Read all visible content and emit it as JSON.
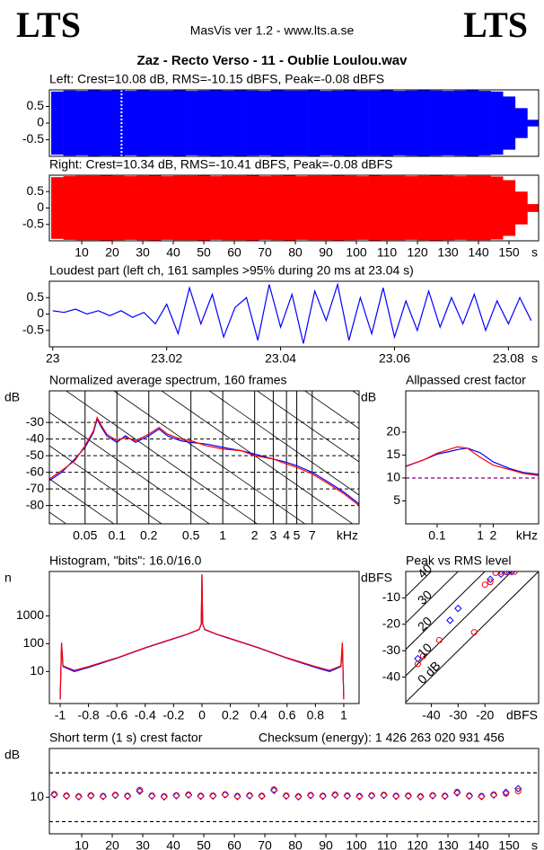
{
  "header": {
    "logo_left": "LTS",
    "app": "MasVis ver 1.2 - www.lts.a.se",
    "logo_right": "LTS",
    "file": "Zaz - Recto Verso - 11 - Oublie Loulou.wav"
  },
  "chart_data": [
    {
      "type": "waveform",
      "title": "Left: Crest=10.08 dB, RMS=-10.15 dBFS, Peak=-0.08 dBFS",
      "color": "#0000ff",
      "x": [
        0,
        4,
        8,
        12,
        16,
        20,
        24,
        28,
        32,
        36,
        40,
        44,
        48,
        52,
        56,
        60,
        64,
        68,
        72,
        76,
        80,
        84,
        88,
        92,
        96,
        100,
        104,
        108,
        112,
        116,
        120,
        124,
        128,
        132,
        136,
        140,
        144,
        148,
        152,
        156
      ],
      "values": [
        0.95,
        0.98,
        0.97,
        0.99,
        0.98,
        0.99,
        0.97,
        0.99,
        0.98,
        0.98,
        0.99,
        0.97,
        0.98,
        0.99,
        0.98,
        0.99,
        0.98,
        0.97,
        0.99,
        0.98,
        0.98,
        0.99,
        0.97,
        0.98,
        0.99,
        0.98,
        0.98,
        0.99,
        0.97,
        0.98,
        0.99,
        0.98,
        0.97,
        0.98,
        0.99,
        0.97,
        0.95,
        0.8,
        0.45,
        0.1
      ],
      "xlim": [
        -0.6,
        159.7
      ],
      "ylim": [
        -1,
        1
      ],
      "yticks": [
        0.5,
        0,
        -0.5
      ],
      "marker_x": 23.04
    },
    {
      "type": "waveform",
      "title": "Right: Crest=10.34 dB, RMS=-10.41 dBFS, Peak=-0.08 dBFS",
      "color": "#ff0000",
      "x": [
        0,
        4,
        8,
        12,
        16,
        20,
        24,
        28,
        32,
        36,
        40,
        44,
        48,
        52,
        56,
        60,
        64,
        68,
        72,
        76,
        80,
        84,
        88,
        92,
        96,
        100,
        104,
        108,
        112,
        116,
        120,
        124,
        128,
        132,
        136,
        140,
        144,
        148,
        152,
        156
      ],
      "values": [
        0.94,
        0.97,
        0.98,
        0.98,
        0.99,
        0.98,
        0.97,
        0.98,
        0.99,
        0.97,
        0.98,
        0.98,
        0.99,
        0.97,
        0.98,
        0.98,
        0.99,
        0.97,
        0.98,
        0.99,
        0.97,
        0.98,
        0.98,
        0.99,
        0.98,
        0.97,
        0.99,
        0.98,
        0.98,
        0.97,
        0.98,
        0.99,
        0.98,
        0.97,
        0.98,
        0.98,
        0.96,
        0.85,
        0.5,
        0.12
      ],
      "xlim": [
        -0.6,
        159.7
      ],
      "ylim": [
        -1,
        1
      ],
      "yticks": [
        0.5,
        0,
        -0.5
      ],
      "xticks": [
        10,
        20,
        30,
        40,
        50,
        60,
        70,
        80,
        90,
        100,
        110,
        120,
        130,
        140,
        150
      ],
      "x_unit": "s"
    },
    {
      "type": "line",
      "title": "Loudest part (left  ch, 161 samples >95% during 20 ms at 23.04 s)",
      "color": "#0000ff",
      "x": [
        23,
        23.002,
        23.004,
        23.006,
        23.008,
        23.01,
        23.012,
        23.014,
        23.016,
        23.018,
        23.02,
        23.022,
        23.024,
        23.026,
        23.028,
        23.03,
        23.032,
        23.034,
        23.036,
        23.038,
        23.04,
        23.042,
        23.044,
        23.046,
        23.048,
        23.05,
        23.052,
        23.054,
        23.056,
        23.058,
        23.06,
        23.062,
        23.064,
        23.066,
        23.068,
        23.07,
        23.072,
        23.074,
        23.076,
        23.078,
        23.08,
        23.082,
        23.084
      ],
      "values": [
        0.1,
        0.05,
        0.15,
        0,
        0.1,
        -0.05,
        0.1,
        -0.1,
        0.05,
        -0.3,
        0.3,
        -0.6,
        0.8,
        -0.3,
        0.6,
        -0.7,
        0.2,
        0.5,
        -0.8,
        0.9,
        -0.4,
        0.6,
        -0.9,
        0.7,
        -0.2,
        0.9,
        -0.8,
        0.5,
        -0.6,
        0.8,
        -0.7,
        0.4,
        -0.5,
        0.7,
        -0.4,
        0.5,
        -0.3,
        0.6,
        -0.5,
        0.4,
        -0.3,
        0.5,
        -0.2
      ],
      "xlim": [
        22.9994,
        23.0853
      ],
      "ylim": [
        -1,
        1
      ],
      "yticks": [
        0.5,
        0,
        -0.5
      ],
      "xticks": [
        23,
        23.02,
        23.04,
        23.06,
        23.08
      ],
      "x_unit": "s"
    },
    {
      "type": "line",
      "title": "Normalized average spectrum, 160 frames",
      "y_label": "dB",
      "x_log": true,
      "x": [
        0.023,
        0.03,
        0.04,
        0.05,
        0.06,
        0.065,
        0.07,
        0.08,
        0.1,
        0.12,
        0.15,
        0.2,
        0.25,
        0.3,
        0.4,
        0.5,
        0.7,
        1,
        1.5,
        2,
        3,
        4,
        5,
        7,
        10,
        14,
        19.4
      ],
      "series": [
        {
          "color": "#0000ff",
          "values": [
            -65,
            -60,
            -52,
            -45,
            -36,
            -28,
            -32,
            -38,
            -42,
            -38,
            -42,
            -38,
            -34,
            -38,
            -41,
            -42,
            -43,
            -45,
            -47,
            -49,
            -52,
            -54,
            -56,
            -60,
            -66,
            -72,
            -79
          ]
        },
        {
          "color": "#ff0000",
          "values": [
            -64,
            -59,
            -53,
            -44,
            -35,
            -27,
            -31,
            -37,
            -41,
            -39,
            -41,
            -37,
            -33,
            -37,
            -40,
            -41,
            -44,
            -46,
            -47,
            -50,
            -52,
            -55,
            -57,
            -61,
            -67,
            -73,
            -80
          ]
        }
      ],
      "xlim": [
        0.023,
        19.4
      ],
      "ylim": [
        -91,
        -11
      ],
      "yticks": [
        -30,
        -40,
        -50,
        -60,
        -70,
        -80
      ],
      "xticks": [
        0.05,
        0.1,
        0.2,
        0.5,
        1,
        2,
        3,
        4,
        5,
        7
      ],
      "x_unit": "kHz",
      "grid": true,
      "grid_x": true
    },
    {
      "type": "line",
      "title": "Allpassed crest factor",
      "y_label": "dB",
      "x_log": true,
      "x": [
        0.0187,
        0.05,
        0.1,
        0.2,
        0.3,
        0.5,
        1,
        2,
        5,
        10,
        22.6
      ],
      "series": [
        {
          "color": "#0000ff",
          "values": [
            12.5,
            14,
            15.2,
            15.8,
            16.2,
            16.5,
            15.5,
            13.5,
            12,
            11.2,
            10.8
          ]
        },
        {
          "color": "#ff0000",
          "values": [
            12.6,
            14,
            15.4,
            16.3,
            16.8,
            16.5,
            14.5,
            12.8,
            11.8,
            11,
            10.5
          ]
        }
      ],
      "xlim": [
        0.0187,
        22.6
      ],
      "ylim": [
        0,
        29
      ],
      "yticks": [
        5,
        10,
        15,
        20
      ],
      "xticks": [
        0.1,
        1,
        2
      ],
      "x_unit": "kHz",
      "ref_lines": [
        10
      ],
      "ref_color": "#800080"
    },
    {
      "type": "line",
      "title": "Histogram, \"bits\": 16.0/16.0",
      "y_label": "n",
      "y_log": true,
      "x": [
        -1,
        -0.99,
        -0.98,
        -0.9,
        -0.8,
        -0.6,
        -0.4,
        -0.2,
        -0.1,
        -0.02,
        -0.005,
        0,
        0.005,
        0.02,
        0.1,
        0.2,
        0.4,
        0.6,
        0.8,
        0.9,
        0.98,
        0.99,
        1
      ],
      "series": [
        {
          "color": "#0000ff",
          "values": [
            1,
            100,
            15,
            10,
            14,
            30,
            70,
            150,
            220,
            320,
            500,
            30000,
            500,
            320,
            220,
            150,
            70,
            30,
            14,
            10,
            15,
            100,
            1
          ]
        },
        {
          "color": "#ff0000",
          "values": [
            1,
            110,
            16,
            11,
            15,
            31,
            72,
            155,
            225,
            330,
            520,
            32000,
            520,
            330,
            225,
            155,
            72,
            31,
            15,
            11,
            16,
            110,
            1
          ]
        }
      ],
      "xlim": [
        -1.076,
        1.108
      ],
      "ylim": [
        0.7,
        40000
      ],
      "yticks": [
        10,
        100,
        1000
      ],
      "xticks": [
        -1,
        -0.8,
        -0.6,
        -0.4,
        -0.2,
        0,
        0.2,
        0.4,
        0.6,
        0.8,
        1
      ]
    },
    {
      "type": "scatter",
      "title": "Peak vs RMS level",
      "y_label": "dBFS",
      "series": [
        {
          "color": "#0000ff",
          "marker": "diamond",
          "x": [
            -45,
            -33,
            -30,
            -18,
            -14,
            -12,
            -10
          ],
          "values": [
            -33,
            -18.5,
            -14,
            -3,
            -1,
            -0.1,
            -0.1
          ]
        },
        {
          "color": "#ff0000",
          "marker": "circle",
          "x": [
            -43,
            -45,
            -37,
            -24,
            -20,
            -18,
            -16,
            -14,
            -11,
            -9
          ],
          "values": [
            -32,
            -35,
            -26,
            -23,
            -5,
            -4,
            -0.5,
            -0.1,
            -0.1,
            -0.1
          ]
        }
      ],
      "xlim": [
        -49.5,
        0
      ],
      "ylim": [
        -50,
        0
      ],
      "xticks": [
        -40,
        -30,
        -20
      ],
      "yticks": [
        -10,
        -20,
        -30,
        -40
      ],
      "x_unit": "dBFS",
      "crest_lines": [
        {
          "value": 0,
          "label": "0 dB"
        },
        10,
        20,
        30,
        40
      ]
    },
    {
      "type": "scatter",
      "title": "Short term (1 s) crest factor",
      "annotation": "Checksum (energy):  1 426 263 020 931 456",
      "y_label": "dB",
      "x": [
        1,
        5,
        9,
        13,
        17,
        21,
        25,
        29,
        33,
        37,
        41,
        45,
        49,
        53,
        57,
        61,
        65,
        69,
        73,
        77,
        81,
        85,
        89,
        93,
        97,
        101,
        105,
        109,
        113,
        117,
        121,
        125,
        129,
        133,
        137,
        141,
        145,
        149,
        153
      ],
      "series": [
        {
          "color": "#0000ff",
          "marker": "diamond",
          "values": [
            11,
            10.5,
            10.2,
            10.6,
            10.3,
            10.8,
            10.4,
            12.5,
            10.5,
            10.2,
            10.6,
            10.9,
            10.4,
            10.5,
            11,
            10.3,
            10.6,
            10.4,
            12.8,
            10.5,
            10.2,
            10.7,
            10.4,
            10.9,
            10.5,
            10.3,
            10.6,
            10.8,
            10.4,
            10.5,
            10.2,
            10.6,
            10.4,
            11.8,
            10.5,
            10.3,
            10.9,
            12,
            13.5
          ]
        },
        {
          "color": "#ff0000",
          "marker": "circle",
          "values": [
            11.3,
            10.7,
            10.4,
            10.8,
            10.5,
            11,
            10.6,
            13,
            10.7,
            10.4,
            10.8,
            11.1,
            10.6,
            10.7,
            11.2,
            10.5,
            10.8,
            10.6,
            13.2,
            10.7,
            10.4,
            10.9,
            10.6,
            11.1,
            10.7,
            10.5,
            10.8,
            11,
            10.6,
            10.7,
            10.4,
            10.8,
            10.6,
            12.2,
            10.7,
            10.5,
            11.1,
            11.5,
            12.5
          ]
        }
      ],
      "xlim": [
        -0.6,
        159.7
      ],
      "ylim": [
        -5,
        30
      ],
      "yticks": [
        10
      ],
      "ref_lines": [
        0,
        20
      ],
      "xticks": [
        10,
        20,
        30,
        40,
        50,
        60,
        70,
        80,
        90,
        100,
        110,
        120,
        130,
        140,
        150
      ],
      "x_unit": "s"
    }
  ]
}
